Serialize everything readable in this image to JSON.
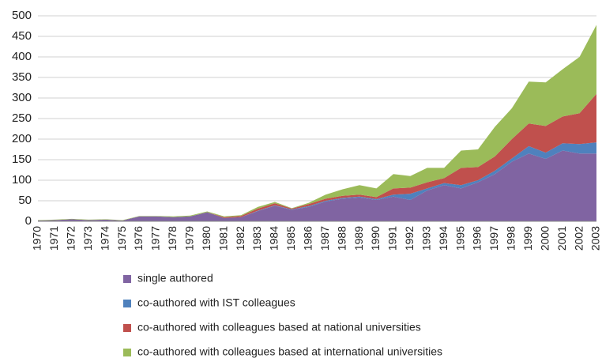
{
  "chart_data": {
    "type": "stacked_area",
    "categories": [
      "1970",
      "1971",
      "1972",
      "1973",
      "1974",
      "1975",
      "1976",
      "1977",
      "1978",
      "1979",
      "1980",
      "1981",
      "1982",
      "1983",
      "1984",
      "1985",
      "1986",
      "1987",
      "1988",
      "1989",
      "1990",
      "1991",
      "1992",
      "1993",
      "1994",
      "1995",
      "1996",
      "1997",
      "1998",
      "1999",
      "2000",
      "2001",
      "2002",
      "2003"
    ],
    "series": [
      {
        "name": "single authored",
        "color": "#8064a2",
        "values": [
          2,
          3,
          5,
          3,
          4,
          2,
          12,
          12,
          10,
          12,
          22,
          8,
          10,
          25,
          38,
          28,
          35,
          48,
          55,
          58,
          52,
          60,
          52,
          75,
          88,
          80,
          95,
          115,
          145,
          165,
          152,
          172,
          165,
          165
        ]
      },
      {
        "name": "co-authored with IST colleagues",
        "color": "#4f81bd",
        "values": [
          0,
          0,
          0,
          0,
          0,
          0,
          0,
          0,
          0,
          0,
          0,
          0,
          0,
          1,
          1,
          1,
          2,
          2,
          2,
          2,
          2,
          5,
          15,
          5,
          5,
          8,
          5,
          8,
          8,
          18,
          15,
          18,
          23,
          27
        ]
      },
      {
        "name": "co-authored with colleagues based at national universities",
        "color": "#c0504d",
        "values": [
          0,
          0,
          0,
          0,
          0,
          0,
          0,
          0,
          0,
          0,
          0,
          2,
          3,
          5,
          5,
          2,
          5,
          5,
          5,
          5,
          5,
          15,
          15,
          15,
          12,
          42,
          32,
          35,
          47,
          55,
          65,
          65,
          75,
          118
        ]
      },
      {
        "name": "co-authored with colleagues based at international universities",
        "color": "#9bbb59",
        "values": [
          1,
          1,
          1,
          1,
          1,
          1,
          1,
          1,
          2,
          2,
          2,
          2,
          2,
          4,
          3,
          1,
          3,
          10,
          16,
          23,
          21,
          35,
          28,
          35,
          25,
          42,
          43,
          72,
          75,
          102,
          106,
          115,
          137,
          168
        ]
      }
    ],
    "ylim": [
      0,
      500
    ],
    "yticks": [
      0,
      50,
      100,
      150,
      200,
      250,
      300,
      350,
      400,
      450,
      500
    ],
    "grid": true,
    "legend": "bottom"
  }
}
